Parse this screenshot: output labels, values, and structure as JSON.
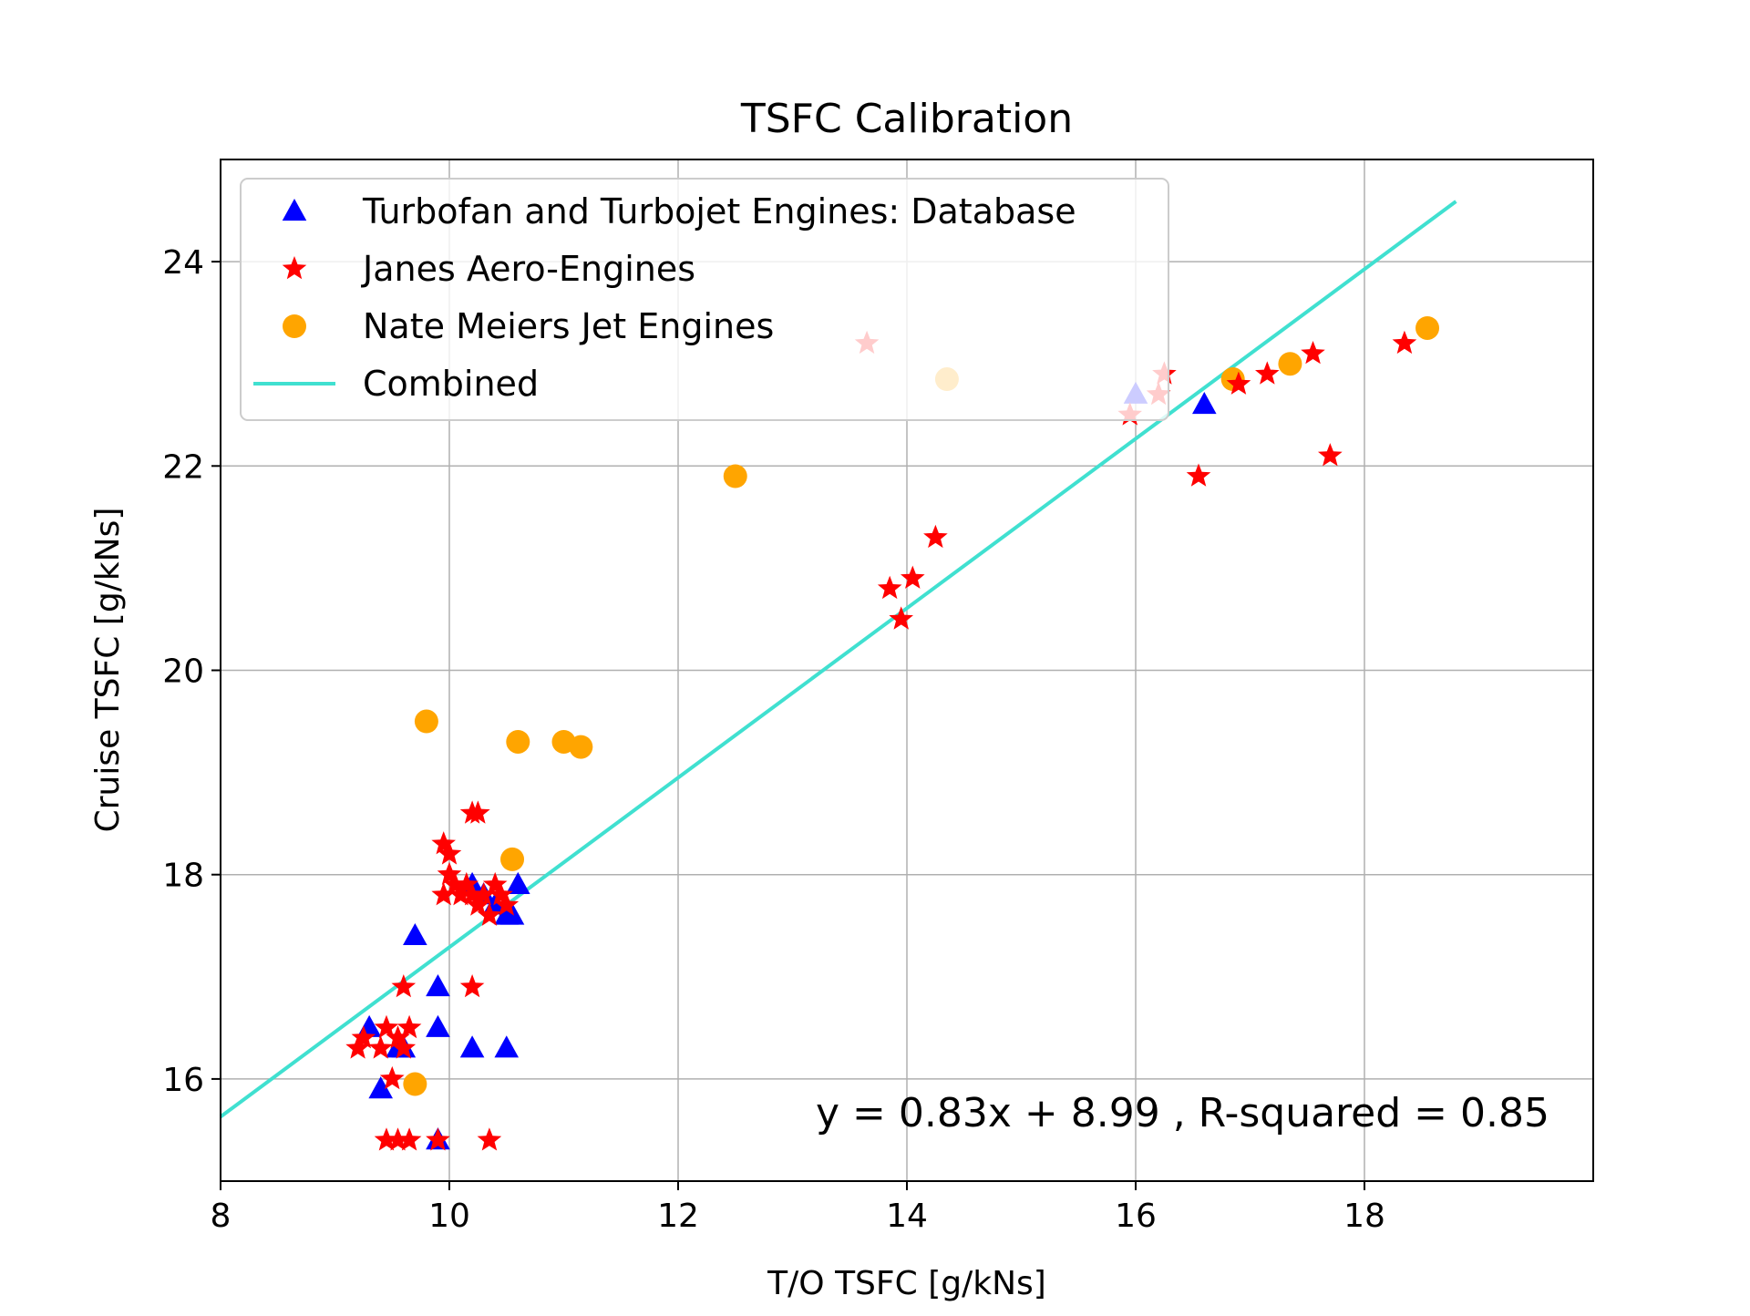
{
  "chart_data": {
    "type": "scatter",
    "title": "TSFC Calibration",
    "xlabel": "T/O TSFC [g/kNs]",
    "ylabel": "Cruise TSFC [g/kNs]",
    "xlim": [
      8,
      20
    ],
    "ylim": [
      15,
      25
    ],
    "xticks": [
      8,
      10,
      12,
      14,
      16,
      18
    ],
    "yticks": [
      16,
      18,
      20,
      22,
      24
    ],
    "xtick_labels": [
      "8",
      "10",
      "12",
      "14",
      "16",
      "18"
    ],
    "ytick_labels": [
      "16",
      "18",
      "20",
      "22",
      "24"
    ],
    "grid": true,
    "legend_position": "top-left",
    "annotation": "y = 0.83x + 8.99 , R-squared = 0.85",
    "series": [
      {
        "name": "Turbofan and Turbojet Engines: Database",
        "marker": "triangle",
        "color": "#0000ff",
        "points": [
          [
            9.3,
            16.5
          ],
          [
            9.4,
            15.9
          ],
          [
            9.55,
            16.3
          ],
          [
            9.6,
            16.3
          ],
          [
            9.7,
            17.4
          ],
          [
            9.9,
            16.9
          ],
          [
            9.9,
            16.5
          ],
          [
            9.9,
            15.4
          ],
          [
            10.2,
            16.3
          ],
          [
            10.5,
            16.3
          ],
          [
            10.2,
            17.9
          ],
          [
            10.3,
            17.8
          ],
          [
            10.4,
            17.7
          ],
          [
            10.5,
            17.6
          ],
          [
            10.55,
            17.6
          ],
          [
            10.6,
            17.9
          ],
          [
            16.0,
            22.7
          ],
          [
            16.6,
            22.6
          ]
        ]
      },
      {
        "name": "Janes Aero-Engines",
        "marker": "star",
        "color": "#ff0000",
        "points": [
          [
            9.2,
            16.3
          ],
          [
            9.25,
            16.4
          ],
          [
            9.4,
            16.3
          ],
          [
            9.45,
            16.5
          ],
          [
            9.55,
            16.4
          ],
          [
            9.5,
            16.0
          ],
          [
            9.6,
            16.3
          ],
          [
            9.65,
            16.5
          ],
          [
            9.6,
            16.9
          ],
          [
            9.45,
            15.4
          ],
          [
            9.55,
            15.4
          ],
          [
            9.65,
            15.4
          ],
          [
            9.9,
            15.4
          ],
          [
            10.35,
            15.4
          ],
          [
            10.2,
            16.9
          ],
          [
            9.95,
            18.3
          ],
          [
            10.0,
            18.2
          ],
          [
            10.0,
            18.0
          ],
          [
            9.95,
            17.8
          ],
          [
            10.05,
            17.9
          ],
          [
            10.1,
            17.8
          ],
          [
            10.15,
            17.9
          ],
          [
            10.2,
            17.8
          ],
          [
            10.25,
            17.7
          ],
          [
            10.3,
            17.8
          ],
          [
            10.35,
            17.6
          ],
          [
            10.4,
            17.9
          ],
          [
            10.45,
            17.8
          ],
          [
            10.5,
            17.7
          ],
          [
            10.2,
            18.6
          ],
          [
            10.25,
            18.6
          ],
          [
            13.85,
            20.8
          ],
          [
            13.95,
            20.5
          ],
          [
            14.05,
            20.9
          ],
          [
            14.25,
            21.3
          ],
          [
            13.65,
            23.2
          ],
          [
            15.95,
            22.5
          ],
          [
            16.2,
            22.7
          ],
          [
            16.25,
            22.9
          ],
          [
            16.55,
            21.9
          ],
          [
            16.9,
            22.8
          ],
          [
            17.15,
            22.9
          ],
          [
            17.55,
            23.1
          ],
          [
            17.7,
            22.1
          ],
          [
            18.35,
            23.2
          ]
        ]
      },
      {
        "name": "Nate Meiers Jet Engines",
        "marker": "circle",
        "color": "#ffa500",
        "points": [
          [
            9.7,
            15.95
          ],
          [
            9.8,
            19.5
          ],
          [
            10.55,
            18.15
          ],
          [
            10.6,
            19.3
          ],
          [
            11.0,
            19.3
          ],
          [
            11.15,
            19.25
          ],
          [
            12.5,
            21.9
          ],
          [
            14.35,
            22.85
          ],
          [
            16.85,
            22.85
          ],
          [
            17.35,
            23.0
          ],
          [
            18.55,
            23.35
          ]
        ]
      },
      {
        "name": "Combined",
        "marker": "line",
        "color": "#40e0d0",
        "points": [
          [
            8.0,
            15.63
          ],
          [
            18.8,
            24.59
          ]
        ]
      }
    ]
  }
}
